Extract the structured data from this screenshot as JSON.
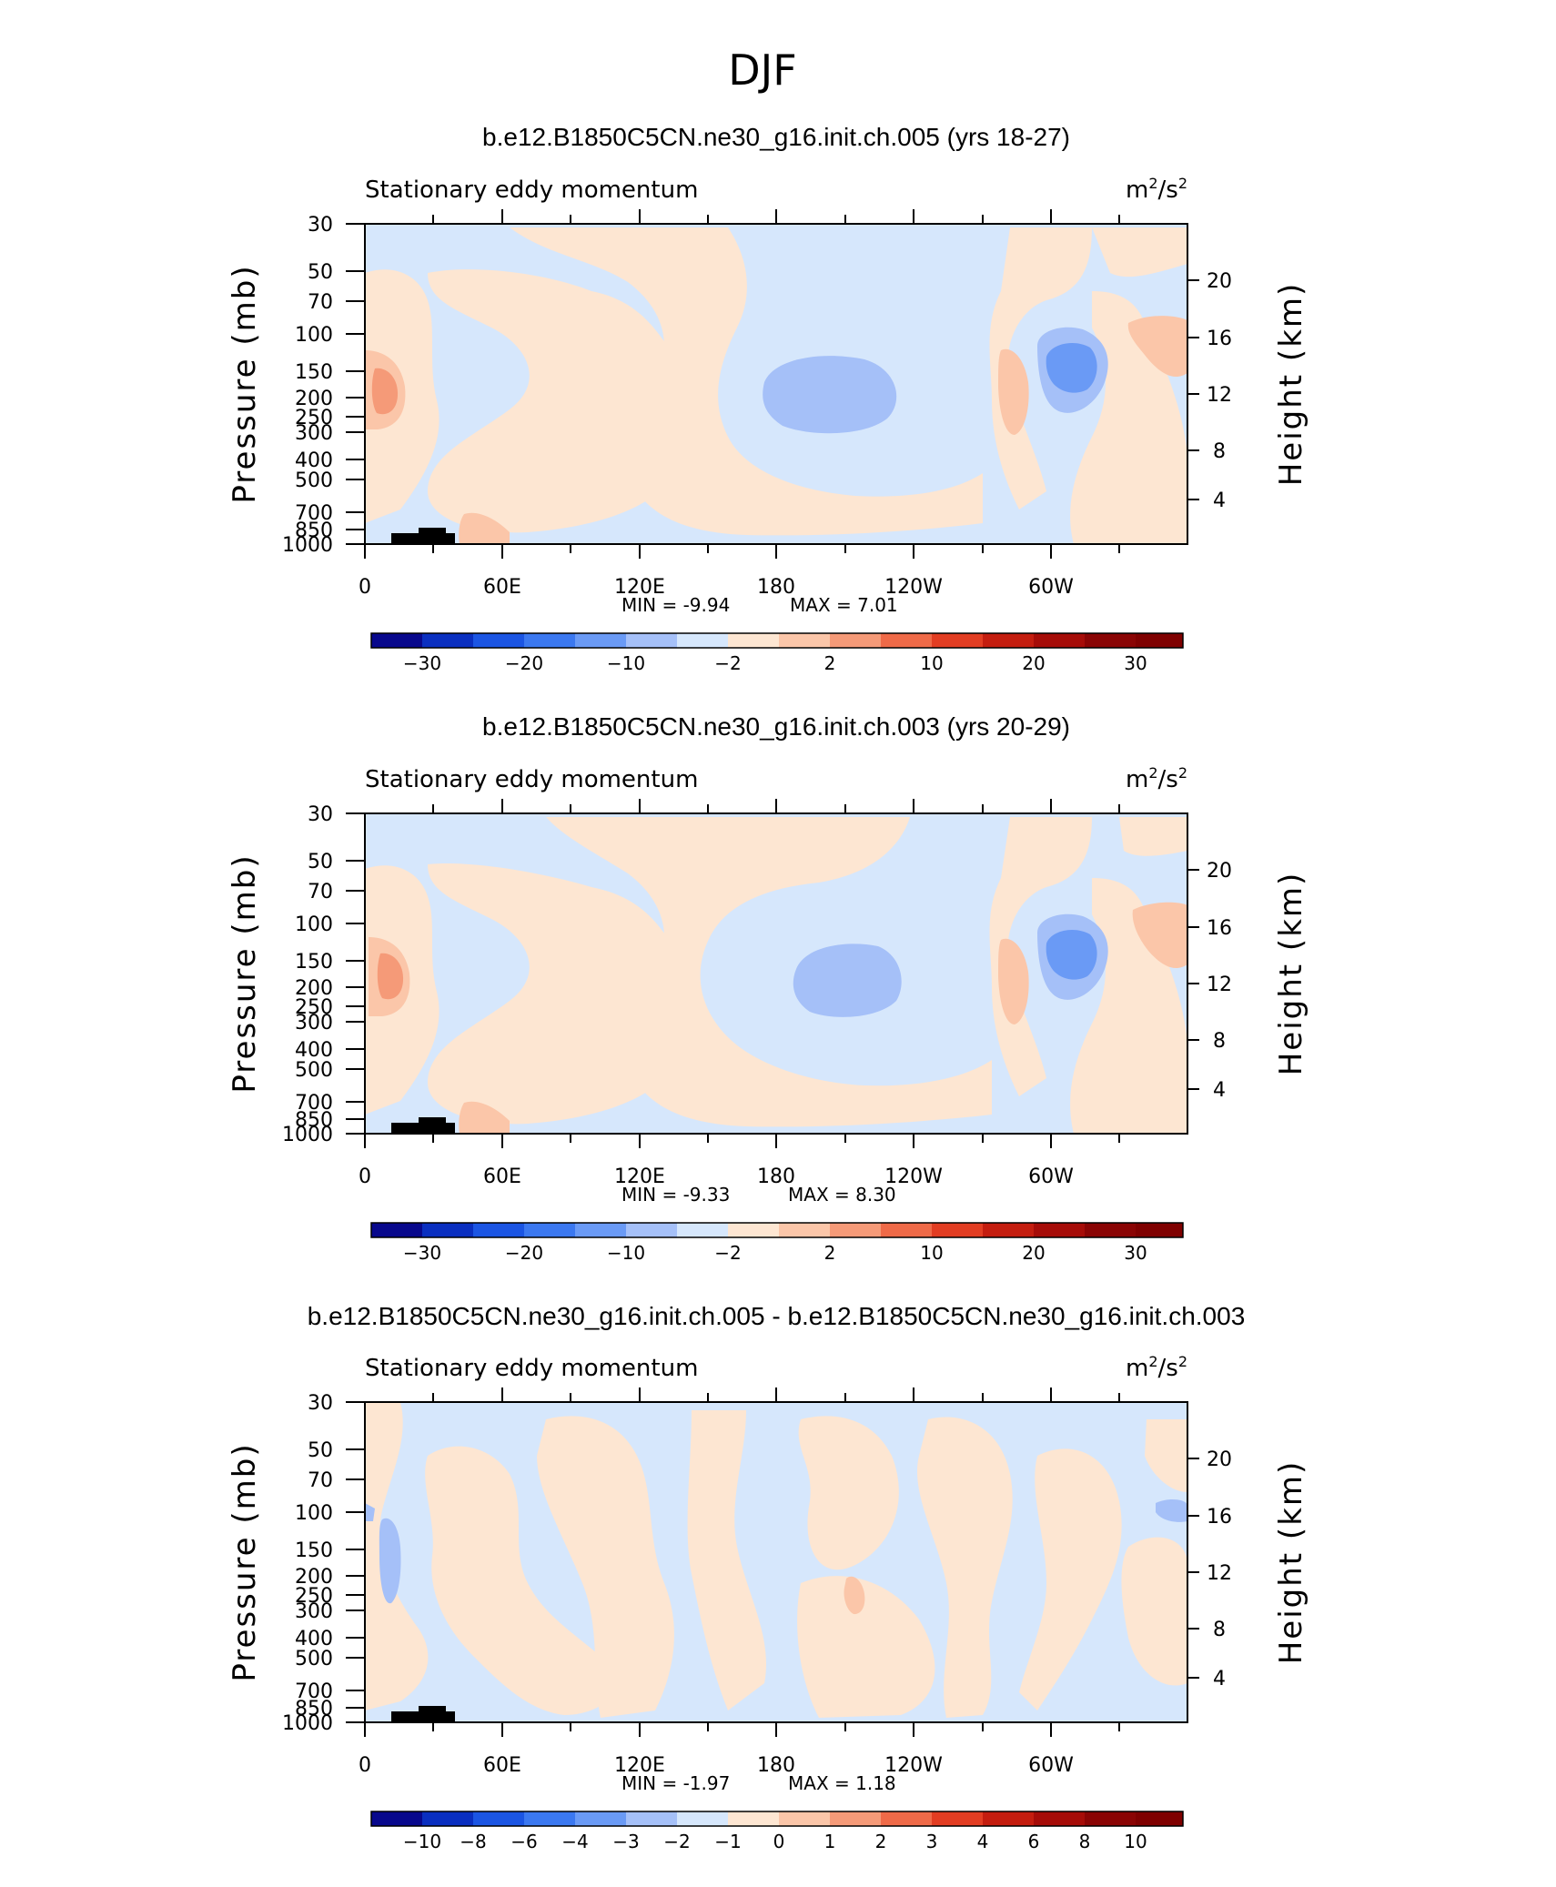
{
  "figure": {
    "main_title": "DJF",
    "pressure_ticks": [
      "30",
      "50",
      "70",
      "100",
      "150",
      "200",
      "250",
      "300",
      "400",
      "500",
      "700",
      "850",
      "1000"
    ],
    "height_ticks": [
      "20",
      "16",
      "12",
      "8",
      "4"
    ],
    "x_ticks": [
      "0",
      "60E",
      "120E",
      "180",
      "120W",
      "60W"
    ]
  },
  "chart_data": [
    {
      "type": "heatmap",
      "title": "b.e12.B1850C5CN.ne30_g16.init.ch.005 (yrs 18-27)",
      "subtitle_left": "Stationary eddy momentum",
      "units": "m²/s²",
      "ylabel": "Pressure (mb)",
      "y2label": "Height (km)",
      "min_label": "MIN = -9.94",
      "max_label": "MAX = 7.01",
      "colorbar_labels": [
        "−30",
        "−20",
        "−10",
        "−2",
        "2",
        "10",
        "20",
        "30"
      ],
      "colorbar_levels": [
        -40,
        -30,
        -25,
        -20,
        -15,
        -10,
        -5,
        -2,
        2,
        5,
        10,
        15,
        20,
        25,
        30,
        35,
        40
      ],
      "features": [
        {
          "lon": 180,
          "p": 200,
          "value": -8,
          "label": "central Pacific negative"
        },
        {
          "lon": 295,
          "p": 150,
          "value": -9.5,
          "label": "western hemisphere negative"
        },
        {
          "lon": 10,
          "p": 200,
          "value": 6.5,
          "label": "Greenwich positive"
        },
        {
          "lon": 275,
          "p": 200,
          "value": 5,
          "label": "east Pacific positive"
        },
        {
          "lon": 350,
          "p": 100,
          "value": 5,
          "label": "Atlantic upper positive"
        }
      ]
    },
    {
      "type": "heatmap",
      "title": "b.e12.B1850C5CN.ne30_g16.init.ch.003 (yrs 20-29)",
      "subtitle_left": "Stationary eddy momentum",
      "units": "m²/s²",
      "ylabel": "Pressure (mb)",
      "y2label": "Height (km)",
      "min_label": "MIN = -9.33",
      "max_label": "MAX = 8.30",
      "colorbar_labels": [
        "−30",
        "−20",
        "−10",
        "−2",
        "2",
        "10",
        "20",
        "30"
      ],
      "colorbar_levels": [
        -40,
        -30,
        -25,
        -20,
        -15,
        -10,
        -5,
        -2,
        2,
        5,
        10,
        15,
        20,
        25,
        30,
        35,
        40
      ],
      "features": [
        {
          "lon": 180,
          "p": 200,
          "value": -7.5,
          "label": "central Pacific negative"
        },
        {
          "lon": 295,
          "p": 150,
          "value": -9,
          "label": "western hemisphere negative"
        },
        {
          "lon": 10,
          "p": 200,
          "value": 8,
          "label": "Greenwich positive"
        },
        {
          "lon": 275,
          "p": 200,
          "value": 5,
          "label": "east Pacific positive"
        },
        {
          "lon": 350,
          "p": 100,
          "value": 4.5,
          "label": "Atlantic upper positive"
        }
      ]
    },
    {
      "type": "heatmap",
      "title": "b.e12.B1850C5CN.ne30_g16.init.ch.005 - b.e12.B1850C5CN.ne30_g16.init.ch.003",
      "subtitle_left": "Stationary eddy momentum",
      "units": "m²/s²",
      "ylabel": "Pressure (mb)",
      "y2label": "Height (km)",
      "min_label": "MIN = -1.97",
      "max_label": "MAX = 1.18",
      "colorbar_labels": [
        "−10",
        "−8",
        "−6",
        "−4",
        "−3",
        "−2",
        "−1",
        "0",
        "1",
        "2",
        "3",
        "4",
        "6",
        "8",
        "10"
      ],
      "colorbar_levels": [
        -12,
        -10,
        -8,
        -6,
        -4,
        -3,
        -2,
        -1,
        0,
        1,
        2,
        3,
        4,
        6,
        8,
        10,
        12
      ],
      "features": [
        {
          "lon": 10,
          "p": 180,
          "value": -1.9,
          "label": "Greenwich negative"
        },
        {
          "lon": 210,
          "p": 250,
          "value": 1.1,
          "label": "Pacific positive"
        },
        {
          "lon": 355,
          "p": 100,
          "value": -1.2,
          "label": "Atlantic negative"
        }
      ]
    }
  ],
  "colors": {
    "palette": [
      "#08088c",
      "#0a2fc0",
      "#1b55e3",
      "#3b78f0",
      "#6a9af5",
      "#a5c0f8",
      "#d6e7fc",
      "#fde6d2",
      "#fbc6a9",
      "#f59a78",
      "#ef6a48",
      "#e23d22",
      "#c41d0f",
      "#7f0000"
    ]
  }
}
